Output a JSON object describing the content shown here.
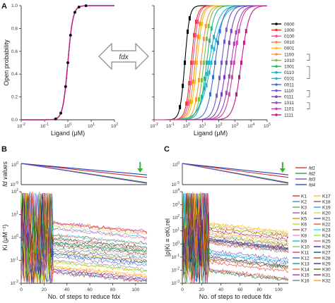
{
  "panels": {
    "a": "A",
    "b": "B",
    "c": "C"
  },
  "arrow_label": "fdx",
  "colors": {
    "0000": "#000000",
    "1000": "#e8352b",
    "0100": "#ff4d8d",
    "0010": "#ff8c1a",
    "0001": "#f0c419",
    "1100": "#f29a3f",
    "1010": "#7cc242",
    "1001": "#2bb673",
    "0110": "#1bb0c9",
    "0101": "#21b5d6",
    "0011": "#3a6fd1",
    "1110": "#6a5acd",
    "0111": "#7b3fb5",
    "1011": "#a23fbf",
    "1101": "#d13ca6",
    "1111": "#c71585"
  },
  "chart_data": [
    {
      "id": "A-left",
      "type": "line",
      "xlabel": "Ligand (μM)",
      "ylabel": "Open probability",
      "x_scale": "log",
      "xlim": [
        0.01,
        100
      ],
      "ylim": [
        0,
        1
      ],
      "x_ticks": [
        "10-2",
        "10-1",
        "100",
        "101",
        "102"
      ],
      "y_ticks": [
        "0.0",
        "0.2",
        "0.4",
        "0.6",
        "0.8",
        "1.0"
      ],
      "series": [
        {
          "ec50": 1.0,
          "hill": 4
        }
      ]
    },
    {
      "id": "A-right",
      "type": "line",
      "xlabel": "Ligand (μM)",
      "x_scale": "log",
      "xlim": [
        0.01,
        100000
      ],
      "ylim": [
        0,
        1
      ],
      "x_ticks": [
        "10-2",
        "10-1",
        "100",
        "101",
        "102",
        "103",
        "104",
        "105"
      ],
      "legend": [
        "0000",
        "1000",
        "0100",
        "0010",
        "0001",
        "1100",
        "1010",
        "1001",
        "0110",
        "0101",
        "0011",
        "1110",
        "0111",
        "1011",
        "1101",
        "1111"
      ],
      "series": [
        {
          "name": "0000",
          "ec50": 0.8,
          "hill": 3
        },
        {
          "name": "1000",
          "ec50": 2.0,
          "hill": 2.6
        },
        {
          "name": "0100",
          "ec50": 2.5,
          "hill": 2.6
        },
        {
          "name": "0010",
          "ec50": 3.5,
          "hill": 2.4
        },
        {
          "name": "0001",
          "ec50": 4.5,
          "hill": 2.4
        },
        {
          "name": "1100",
          "ec50": 8,
          "hill": 2.2
        },
        {
          "name": "1010",
          "ec50": 12,
          "hill": 2.2
        },
        {
          "name": "1001",
          "ec50": 18,
          "hill": 2.0
        },
        {
          "name": "0110",
          "ec50": 25,
          "hill": 1.4
        },
        {
          "name": "0101",
          "ec50": 35,
          "hill": 1.2
        },
        {
          "name": "0011",
          "ec50": 60,
          "hill": 1.8
        },
        {
          "name": "1110",
          "ec50": 150,
          "hill": 1.9
        },
        {
          "name": "0111",
          "ec50": 300,
          "hill": 1.8
        },
        {
          "name": "1011",
          "ec50": 600,
          "hill": 1.7
        },
        {
          "name": "1101",
          "ec50": 900,
          "hill": 1.8
        },
        {
          "name": "1111",
          "ec50": 2500,
          "hill": 1.8
        }
      ]
    },
    {
      "id": "B-top",
      "type": "line",
      "ylabel": "fd values",
      "y_scale": "log",
      "ylim": [
        1e-05,
        1
      ],
      "y_ticks": [
        "100",
        "10-5"
      ],
      "xlim": [
        0,
        110
      ],
      "legend": [
        "fd1",
        "fd2",
        "fd3",
        "fd4"
      ],
      "series": [
        {
          "name": "fd1",
          "end": 0.0005
        },
        {
          "name": "fd2",
          "end": 3e-05
        },
        {
          "name": "fd3",
          "end": 2e-05
        },
        {
          "name": "fd4",
          "end": 0.002
        }
      ],
      "marker_x": 104
    },
    {
      "id": "B-bottom",
      "type": "line",
      "xlabel": "No. of steps to reduce fdx",
      "ylabel": "Ki (μM⁻¹)",
      "y_scale": "log",
      "ylim": [
        0.01,
        100
      ],
      "xlim": [
        0,
        110
      ],
      "x_ticks": [
        "0",
        "20",
        "40",
        "60",
        "80",
        "100"
      ],
      "y_ticks": [
        "102",
        "101",
        "100",
        "10-1",
        "10-2"
      ],
      "n_series": 32
    },
    {
      "id": "C-top",
      "type": "line",
      "y_scale": "log",
      "ylim": [
        1e-05,
        1
      ],
      "y_ticks": [
        "100",
        "10-5"
      ],
      "xlim": [
        0,
        110
      ],
      "legend": [
        "fd1",
        "fd2",
        "fd3",
        "fd4"
      ],
      "marker_x": 104
    },
    {
      "id": "C-bottom",
      "type": "line",
      "xlabel": "No. of steps to reduce fdx",
      "ylabel": "|ρ|Ki ≡ σKi,rel",
      "y_scale": "log",
      "ylim": [
        0.001,
        10000
      ],
      "xlim": [
        0,
        110
      ],
      "x_ticks": [
        "0",
        "20",
        "40",
        "60",
        "80",
        "100"
      ],
      "y_ticks": [
        "104",
        "103",
        "102",
        "101",
        "100",
        "10-1",
        "10-2",
        "10-3"
      ],
      "legend": [
        "K1",
        "K2",
        "K3",
        "K4",
        "K5",
        "K6",
        "K7",
        "K8",
        "K9",
        "K10",
        "K11",
        "K12",
        "K13",
        "K14",
        "K15",
        "K16",
        "K17",
        "K18",
        "K19",
        "K20",
        "K21",
        "K22",
        "K23",
        "K24",
        "K25",
        "K26",
        "K27",
        "K28",
        "K29",
        "K30",
        "K31",
        "K32"
      ]
    }
  ]
}
